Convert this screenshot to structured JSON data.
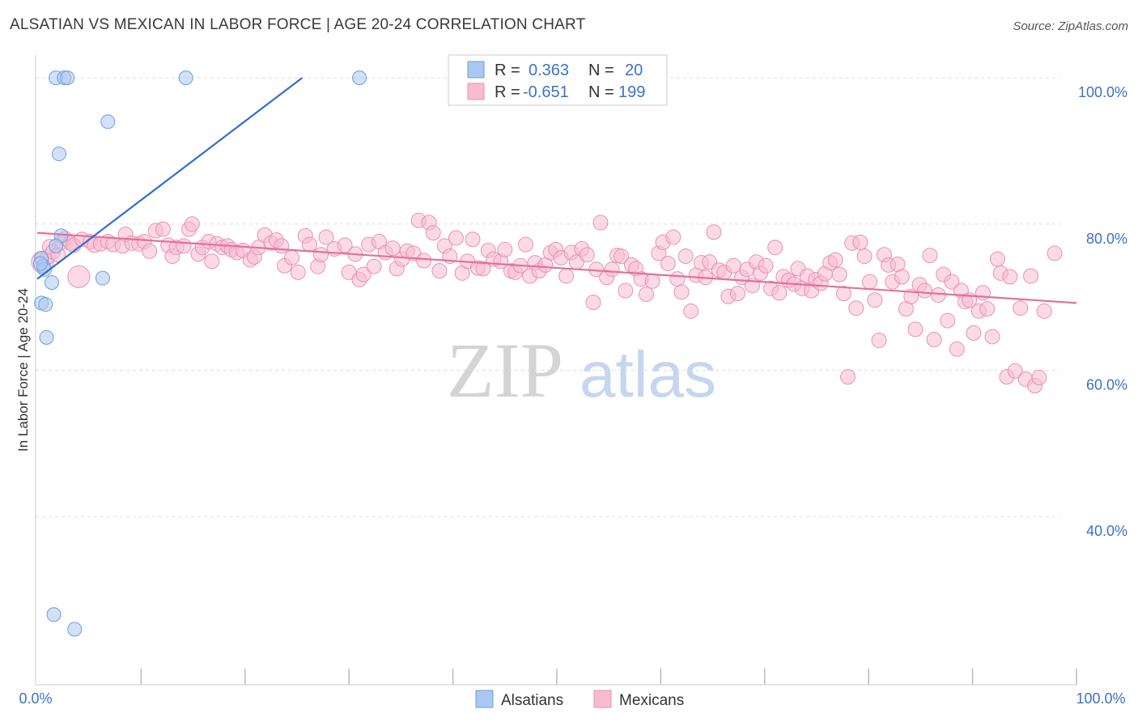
{
  "header": {
    "title": "ALSATIAN VS MEXICAN IN LABOR FORCE | AGE 20-24 CORRELATION CHART",
    "source": "Source: ZipAtlas.com"
  },
  "watermark": {
    "zip": "ZIP",
    "atlas": "atlas"
  },
  "legend_box": {
    "rows": [
      {
        "r_label": "R =",
        "r_value": "0.363",
        "n_label": "N =",
        "n_value": "20"
      },
      {
        "r_label": "R =",
        "r_value": "-0.651",
        "n_label": "N =",
        "n_value": "199"
      }
    ]
  },
  "chart_data": {
    "type": "scatter",
    "title": "ALSATIAN VS MEXICAN IN LABOR FORCE | AGE 20-24 CORRELATION CHART",
    "xlabel": "",
    "ylabel": "In Labor Force | Age 20-24",
    "xlim": [
      0,
      100
    ],
    "ylim": [
      17,
      103
    ],
    "x_tick_labels": [
      "0.0%",
      "100.0%"
    ],
    "y_ticks": [
      40,
      60,
      80,
      100
    ],
    "y_tick_labels": [
      "40.0%",
      "60.0%",
      "80.0%",
      "100.0%"
    ],
    "grid": true,
    "legend_position": "top-center",
    "colors": {
      "alsatians_fill": "#aac8f2",
      "alsatians_stroke": "#6e9ede",
      "alsatians_line": "#2f6fce",
      "mexicans_fill": "#f7bcd0",
      "mexicans_stroke": "#e991b2",
      "mexicans_line": "#e3709c",
      "grid": "#dddddd",
      "axis": "#cccccc",
      "tick_text": "#3b72c8"
    },
    "series": [
      {
        "name": "Alsatians",
        "r": 0.363,
        "n": 20,
        "trendline": {
          "x": [
            0,
            25.5
          ],
          "y": [
            72.5,
            100
          ]
        },
        "points": [
          [
            1.8,
            100
          ],
          [
            2.6,
            100
          ],
          [
            2.9,
            100
          ],
          [
            14.3,
            100
          ],
          [
            31,
            100
          ],
          [
            6.8,
            94
          ],
          [
            2.1,
            89.6
          ],
          [
            2.3,
            78.4
          ],
          [
            1.8,
            77
          ],
          [
            0.4,
            75.3
          ],
          [
            0.6,
            74.2
          ],
          [
            0.7,
            73.8
          ],
          [
            1.4,
            72
          ],
          [
            6.3,
            72.6
          ],
          [
            0.4,
            69.2
          ],
          [
            0.8,
            69
          ],
          [
            0.9,
            64.5
          ],
          [
            1.6,
            26.6
          ],
          [
            3.6,
            24.6
          ],
          [
            0.3,
            74.6
          ]
        ]
      },
      {
        "name": "Mexicans",
        "r": -0.651,
        "n": 199,
        "trendline": {
          "x": [
            0,
            100
          ],
          "y": [
            78.8,
            69.2
          ]
        },
        "points": [
          [
            0.5,
            74.8
          ],
          [
            1.0,
            75.5
          ],
          [
            1.2,
            76.9
          ],
          [
            1.5,
            76.2
          ],
          [
            2.0,
            75.8
          ],
          [
            2.3,
            77.5
          ],
          [
            2.7,
            78.0
          ],
          [
            3.2,
            77.4
          ],
          [
            3.5,
            77.1
          ],
          [
            4.0,
            72.8
          ],
          [
            4.3,
            77.9
          ],
          [
            5.1,
            77.6
          ],
          [
            5.5,
            77.1
          ],
          [
            6.1,
            77.3
          ],
          [
            6.8,
            77.6
          ],
          [
            7.3,
            77.2
          ],
          [
            8.2,
            77.0
          ],
          [
            8.5,
            78.6
          ],
          [
            9.1,
            77.4
          ],
          [
            9.8,
            77.3
          ],
          [
            10.3,
            77.6
          ],
          [
            10.8,
            76.3
          ],
          [
            11.4,
            79.1
          ],
          [
            12.1,
            79.3
          ],
          [
            12.6,
            77.1
          ],
          [
            13.0,
            75.6
          ],
          [
            13.4,
            76.8
          ],
          [
            14.1,
            77.0
          ],
          [
            14.6,
            79.3
          ],
          [
            14.9,
            80.0
          ],
          [
            15.5,
            75.9
          ],
          [
            15.9,
            76.8
          ],
          [
            16.5,
            77.6
          ],
          [
            16.8,
            74.9
          ],
          [
            17.3,
            77.3
          ],
          [
            17.8,
            76.8
          ],
          [
            18.3,
            77.0
          ],
          [
            18.7,
            76.5
          ],
          [
            19.2,
            76.1
          ],
          [
            19.8,
            76.4
          ],
          [
            20.5,
            75.1
          ],
          [
            20.9,
            75.5
          ],
          [
            21.3,
            76.8
          ],
          [
            21.9,
            78.5
          ],
          [
            22.5,
            77.4
          ],
          [
            23.0,
            77.8
          ],
          [
            23.5,
            77.0
          ],
          [
            23.8,
            74.3
          ],
          [
            24.5,
            75.4
          ],
          [
            25.1,
            73.4
          ],
          [
            25.8,
            78.4
          ],
          [
            26.2,
            77.2
          ],
          [
            27.0,
            74.2
          ],
          [
            27.3,
            75.8
          ],
          [
            27.8,
            78.2
          ],
          [
            28.6,
            76.6
          ],
          [
            29.6,
            77.1
          ],
          [
            30.0,
            73.4
          ],
          [
            30.6,
            75.9
          ],
          [
            31.0,
            72.4
          ],
          [
            31.4,
            73.1
          ],
          [
            31.9,
            77.2
          ],
          [
            32.4,
            74.2
          ],
          [
            32.9,
            77.6
          ],
          [
            33.5,
            76.1
          ],
          [
            34.2,
            76.7
          ],
          [
            34.6,
            73.9
          ],
          [
            35.1,
            75.2
          ],
          [
            35.6,
            76.3
          ],
          [
            36.2,
            76.0
          ],
          [
            36.7,
            80.5
          ],
          [
            37.2,
            75.0
          ],
          [
            37.7,
            80.2
          ],
          [
            38.1,
            78.8
          ],
          [
            38.7,
            73.6
          ],
          [
            39.2,
            77.0
          ],
          [
            39.7,
            75.6
          ],
          [
            40.3,
            78.1
          ],
          [
            40.9,
            73.3
          ],
          [
            41.4,
            74.9
          ],
          [
            41.9,
            77.9
          ],
          [
            42.4,
            74.0
          ],
          [
            42.9,
            73.9
          ],
          [
            43.4,
            76.4
          ],
          [
            43.9,
            75.2
          ],
          [
            44.6,
            74.9
          ],
          [
            45.0,
            76.5
          ],
          [
            45.6,
            73.6
          ],
          [
            46.0,
            73.4
          ],
          [
            46.5,
            74.3
          ],
          [
            47.0,
            77.2
          ],
          [
            47.4,
            72.9
          ],
          [
            47.9,
            74.7
          ],
          [
            48.3,
            73.6
          ],
          [
            48.9,
            74.4
          ],
          [
            49.4,
            76.1
          ],
          [
            49.9,
            76.5
          ],
          [
            50.4,
            75.4
          ],
          [
            50.9,
            72.9
          ],
          [
            51.4,
            76.1
          ],
          [
            51.9,
            74.8
          ],
          [
            52.4,
            76.6
          ],
          [
            52.9,
            75.8
          ],
          [
            53.5,
            69.3
          ],
          [
            53.8,
            73.8
          ],
          [
            54.2,
            80.2
          ],
          [
            54.8,
            72.7
          ],
          [
            55.3,
            73.8
          ],
          [
            55.8,
            75.7
          ],
          [
            56.2,
            75.6
          ],
          [
            56.6,
            70.9
          ],
          [
            57.2,
            74.4
          ],
          [
            57.6,
            73.9
          ],
          [
            58.1,
            72.5
          ],
          [
            58.6,
            70.4
          ],
          [
            59.2,
            72.2
          ],
          [
            59.8,
            76.0
          ],
          [
            60.2,
            77.5
          ],
          [
            60.7,
            74.6
          ],
          [
            61.2,
            78.2
          ],
          [
            61.6,
            72.5
          ],
          [
            62.0,
            70.7
          ],
          [
            62.4,
            75.6
          ],
          [
            62.9,
            68.1
          ],
          [
            63.4,
            73.0
          ],
          [
            63.9,
            74.7
          ],
          [
            64.3,
            72.7
          ],
          [
            64.7,
            74.8
          ],
          [
            65.1,
            78.9
          ],
          [
            65.6,
            73.7
          ],
          [
            66.1,
            73.4
          ],
          [
            66.5,
            70.1
          ],
          [
            67.0,
            74.3
          ],
          [
            67.4,
            70.5
          ],
          [
            67.8,
            72.7
          ],
          [
            68.3,
            73.8
          ],
          [
            68.8,
            71.6
          ],
          [
            69.2,
            74.8
          ],
          [
            69.6,
            73.3
          ],
          [
            70.1,
            74.3
          ],
          [
            70.6,
            71.2
          ],
          [
            71.0,
            76.8
          ],
          [
            71.4,
            70.6
          ],
          [
            71.8,
            72.8
          ],
          [
            72.3,
            72.3
          ],
          [
            72.8,
            71.8
          ],
          [
            73.2,
            73.9
          ],
          [
            73.6,
            71.2
          ],
          [
            74.1,
            72.9
          ],
          [
            74.5,
            70.9
          ],
          [
            74.9,
            72.4
          ],
          [
            75.4,
            71.9
          ],
          [
            75.8,
            73.2
          ],
          [
            76.3,
            74.7
          ],
          [
            76.8,
            75.1
          ],
          [
            77.2,
            73.1
          ],
          [
            77.6,
            70.5
          ],
          [
            78.0,
            59.1
          ],
          [
            78.4,
            77.4
          ],
          [
            78.8,
            68.5
          ],
          [
            79.2,
            77.5
          ],
          [
            79.6,
            75.6
          ],
          [
            80.1,
            72.1
          ],
          [
            80.6,
            69.6
          ],
          [
            81.0,
            64.1
          ],
          [
            81.5,
            75.8
          ],
          [
            81.9,
            74.4
          ],
          [
            82.3,
            72.1
          ],
          [
            82.8,
            74.5
          ],
          [
            83.2,
            72.8
          ],
          [
            83.6,
            68.4
          ],
          [
            84.1,
            70.1
          ],
          [
            84.5,
            65.6
          ],
          [
            84.9,
            71.7
          ],
          [
            85.4,
            70.9
          ],
          [
            85.9,
            75.7
          ],
          [
            86.3,
            64.2
          ],
          [
            86.7,
            70.3
          ],
          [
            87.2,
            73.1
          ],
          [
            87.6,
            66.8
          ],
          [
            88.0,
            72.1
          ],
          [
            88.5,
            62.9
          ],
          [
            88.9,
            70.9
          ],
          [
            89.3,
            69.4
          ],
          [
            89.7,
            69.6
          ],
          [
            90.1,
            65.1
          ],
          [
            90.6,
            68.1
          ],
          [
            91.0,
            70.6
          ],
          [
            91.4,
            68.4
          ],
          [
            91.9,
            64.6
          ],
          [
            92.4,
            75.2
          ],
          [
            92.7,
            73.3
          ],
          [
            93.3,
            59.1
          ],
          [
            93.6,
            72.8
          ],
          [
            94.1,
            59.9
          ],
          [
            94.6,
            68.5
          ],
          [
            95.1,
            58.8
          ],
          [
            95.6,
            72.9
          ],
          [
            96.0,
            57.9
          ],
          [
            96.4,
            59.0
          ],
          [
            96.9,
            68.1
          ],
          [
            97.9,
            76.0
          ]
        ]
      }
    ]
  },
  "bottom_legend": {
    "items": [
      {
        "label": "Alsatians"
      },
      {
        "label": "Mexicans"
      }
    ]
  }
}
